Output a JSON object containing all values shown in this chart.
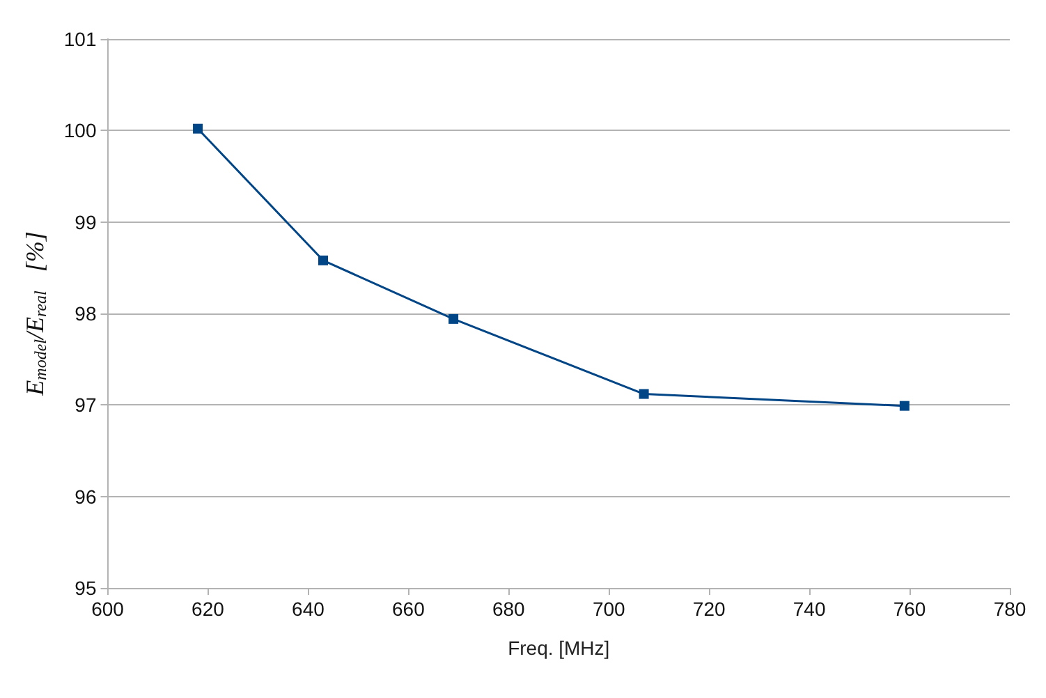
{
  "chart_data": {
    "type": "line",
    "xlabel": "Freq. [MHz]",
    "ylabel": "E$_{model}$/E$_{real}$   [%]",
    "x": [
      618,
      643,
      669,
      707,
      759
    ],
    "series": [
      {
        "color": "#004586",
        "values": [
          100.02,
          98.58,
          97.94,
          97.12,
          96.99
        ]
      }
    ],
    "xlim": [
      600,
      780
    ],
    "xticks": [
      600,
      620,
      640,
      660,
      680,
      700,
      720,
      740,
      760,
      780
    ],
    "ylim": [
      95,
      101
    ],
    "yticks": [
      95,
      96,
      97,
      98,
      99,
      100,
      101
    ],
    "grid": "y",
    "marker": "square",
    "line_style": "solid"
  }
}
